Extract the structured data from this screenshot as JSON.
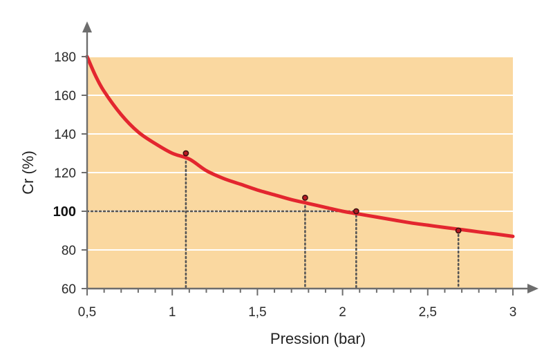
{
  "chart_data": {
    "type": "line",
    "xlabel": "Pression (bar)",
    "ylabel": "Cr (%)",
    "xlim": [
      0.5,
      3
    ],
    "ylim": [
      60,
      180
    ],
    "x_ticks": [
      {
        "value": 0.5,
        "label": "0,5"
      },
      {
        "value": 1,
        "label": "1"
      },
      {
        "value": 1.5,
        "label": "1,5"
      },
      {
        "value": 2,
        "label": "2"
      },
      {
        "value": 2.5,
        "label": "2,5"
      },
      {
        "value": 3,
        "label": "3"
      }
    ],
    "x_minor_step": 0.1,
    "y_ticks": [
      {
        "value": 60,
        "label": "60",
        "bold": false
      },
      {
        "value": 80,
        "label": "80",
        "bold": false
      },
      {
        "value": 100,
        "label": "100",
        "bold": true
      },
      {
        "value": 120,
        "label": "120",
        "bold": false
      },
      {
        "value": 140,
        "label": "140",
        "bold": false
      },
      {
        "value": 160,
        "label": "160",
        "bold": false
      },
      {
        "value": 180,
        "label": "180",
        "bold": false
      }
    ],
    "grid": "horizontal",
    "series": [
      {
        "color": "#e3262f",
        "x": [
          0.5,
          0.55,
          0.6,
          0.7,
          0.8,
          0.9,
          1.0,
          1.1,
          1.2,
          1.3,
          1.4,
          1.5,
          1.6,
          1.7,
          1.8,
          1.9,
          2.0,
          2.1,
          2.2,
          2.3,
          2.4,
          2.5,
          2.6,
          2.7,
          2.8,
          2.9,
          3.0
        ],
        "y": [
          180,
          170,
          162,
          150,
          141,
          135,
          130,
          127,
          121,
          117,
          114,
          111,
          108.5,
          106,
          104,
          102,
          100,
          98.5,
          97,
          95.5,
          94,
          92.8,
          91.6,
          90.5,
          89.3,
          88.2,
          87
        ]
      }
    ],
    "highlighted_points": [
      {
        "x": 1.08,
        "y": 130
      },
      {
        "x": 1.78,
        "y": 107
      },
      {
        "x": 2.08,
        "y": 100
      },
      {
        "x": 2.68,
        "y": 90
      }
    ],
    "reference_lines": [
      {
        "orientation": "horizontal",
        "y": 100,
        "x_to": 2.08,
        "style": "dotted"
      }
    ],
    "colors": {
      "plot_background": "#fad8a0",
      "grid": "#ffffff",
      "axis": "#6d6d6d",
      "guide": "#555555",
      "curve": "#e3262f"
    }
  }
}
